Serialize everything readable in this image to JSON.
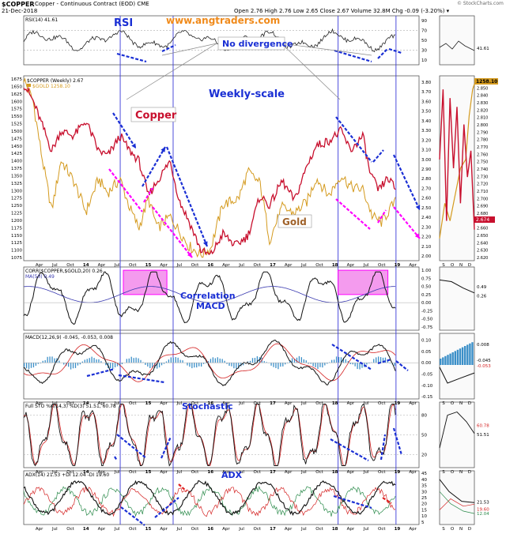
{
  "header": {
    "symbol": "$COPPER",
    "description": "Copper - Continuous Contract (EOD) CME",
    "date": "21-Dec-2018",
    "watermark": "© StockCharts.com",
    "ohlc": "Open 2.76  High 2.76  Low 2.65  Close 2.67  Volume 32.8M  Chg -0.09 (-3.20%) ▾"
  },
  "colors": {
    "copper": "#c8102e",
    "gold": "#d49a1e",
    "blue_annot": "#1a2fd4",
    "magenta_annot": "#ff00ff",
    "vline": "#3a3ad8",
    "panel_bg_right": "#fafafa"
  },
  "annotations": {
    "rsi": "RSI",
    "site": "www.angtraders.com",
    "no_div": "No divergence",
    "weekly": "Weekly-scale",
    "copper": "Copper",
    "gold": "Gold",
    "correlation": "Correlation",
    "macd": "MACD",
    "stochastic": "Stochastic",
    "adx": "ADX"
  },
  "panels": {
    "rsi": {
      "legend": "RSI(14) 41.61",
      "right_value": "41.61",
      "ticks": [
        "90",
        "70",
        "50",
        "30",
        "10"
      ]
    },
    "price": {
      "legend_copper": "$COPPER (Weekly) 2.67",
      "legend_gold": "$GOLD 1258.10",
      "right_gold": "1258.10",
      "right_copper": "2.674",
      "left_ticks": [
        "1675",
        "1650",
        "1625",
        "1600",
        "1575",
        "1550",
        "1525",
        "1500",
        "1475",
        "1450",
        "1425",
        "1400",
        "1375",
        "1350",
        "1325",
        "1300",
        "1275",
        "1250",
        "1225",
        "1200",
        "1175",
        "1150",
        "1125",
        "1100",
        "1075"
      ],
      "right_ticks": [
        "3.80",
        "3.70",
        "3.60",
        "3.50",
        "3.40",
        "3.30",
        "3.20",
        "3.10",
        "3.00",
        "2.90",
        "2.80",
        "2.70",
        "2.60",
        "2.50",
        "2.40",
        "2.30",
        "2.20",
        "2.10",
        "2.00"
      ],
      "inset_ticks": [
        "2.860",
        "2.850",
        "2.840",
        "2.830",
        "2.820",
        "2.810",
        "2.800",
        "2.790",
        "2.780",
        "2.770",
        "2.760",
        "2.750",
        "2.740",
        "2.730",
        "2.720",
        "2.710",
        "2.700",
        "2.690",
        "2.680",
        "2.670",
        "2.660",
        "2.650",
        "2.640",
        "2.630",
        "2.620"
      ]
    },
    "corr": {
      "legend": "CORR($COPPER,$GOLD,20) 0.26",
      "legend2": "MA(50) 0.49",
      "right_1": "0.49",
      "right_2": "0.26",
      "ticks": [
        "1.00",
        "0.75",
        "0.50",
        "0.25",
        "0.00",
        "-0.25",
        "-0.50",
        "-0.75"
      ]
    },
    "macd": {
      "legend": "MACD(12,26,9) -0.045, -0.053, 0.008",
      "r1": "0.008",
      "r2": "-0.045",
      "r3": "-0.053",
      "ticks": [
        "0.10",
        "0.05",
        "0.00",
        "-0.05",
        "-0.10",
        "-0.15"
      ]
    },
    "sto": {
      "legend": "Full STO %K(14,3) %D(3) 51.51, 60.78",
      "r1": "60.78",
      "r2": "51.51",
      "ticks": [
        "80",
        "50",
        "20"
      ]
    },
    "adx": {
      "legend": "ADX(14) 21.53 +DI 12.04 -DI 19.60",
      "r1": "21.53",
      "r2": "19.60",
      "r3": "12.04",
      "ticks": [
        "45",
        "40",
        "35",
        "30",
        "25",
        "20",
        "15",
        "10",
        "5"
      ],
      "inset_ticks": [
        "30.0",
        "27.5",
        "25.0",
        "22.5",
        "20.0",
        "17.5",
        "15.0",
        "12.5"
      ]
    }
  },
  "x_axis": {
    "labels": [
      "Apr",
      "Jul",
      "Oct",
      "14",
      "Apr",
      "Jul",
      "Oct",
      "15",
      "Apr",
      "Jul",
      "Oct",
      "16",
      "Apr",
      "Jul",
      "Oct",
      "17",
      "Apr",
      "Jul",
      "Oct",
      "18",
      "Apr",
      "Jul",
      "Oct",
      "19",
      "Apr"
    ],
    "inset_labels": [
      "S",
      "O",
      "N",
      "D"
    ]
  },
  "chart_data": {
    "type": "line",
    "title": "$COPPER Copper - Continuous Contract (EOD) CME",
    "x_range": [
      "2013-01",
      "2019-04"
    ],
    "series": [
      {
        "name": "$COPPER (Weekly)",
        "unit": "USD/lb",
        "ylim": [
          1.95,
          3.8
        ],
        "points": [
          [
            2013.0,
            3.72
          ],
          [
            2013.15,
            3.55
          ],
          [
            2013.3,
            3.3
          ],
          [
            2013.45,
            3.05
          ],
          [
            2013.6,
            3.25
          ],
          [
            2013.8,
            3.2
          ],
          [
            2014.0,
            3.35
          ],
          [
            2014.2,
            3.05
          ],
          [
            2014.35,
            3.0
          ],
          [
            2014.55,
            3.2
          ],
          [
            2014.7,
            3.05
          ],
          [
            2014.85,
            2.95
          ],
          [
            2015.0,
            2.6
          ],
          [
            2015.15,
            2.75
          ],
          [
            2015.35,
            2.95
          ],
          [
            2015.5,
            2.55
          ],
          [
            2015.65,
            2.35
          ],
          [
            2015.85,
            2.05
          ],
          [
            2016.0,
            2.0
          ],
          [
            2016.2,
            2.22
          ],
          [
            2016.4,
            2.1
          ],
          [
            2016.6,
            2.2
          ],
          [
            2016.8,
            2.6
          ],
          [
            2016.95,
            2.5
          ],
          [
            2017.15,
            2.75
          ],
          [
            2017.35,
            2.55
          ],
          [
            2017.55,
            2.9
          ],
          [
            2017.7,
            3.1
          ],
          [
            2017.9,
            3.15
          ],
          [
            2018.1,
            3.25
          ],
          [
            2018.25,
            3.05
          ],
          [
            2018.45,
            3.2
          ],
          [
            2018.55,
            2.85
          ],
          [
            2018.7,
            2.65
          ],
          [
            2018.85,
            2.78
          ],
          [
            2018.97,
            2.67
          ]
        ]
      },
      {
        "name": "$GOLD",
        "unit": "USD/oz",
        "ylim": [
          1060,
          1685
        ],
        "points": [
          [
            2013.0,
            1675
          ],
          [
            2013.15,
            1600
          ],
          [
            2013.3,
            1400
          ],
          [
            2013.45,
            1230
          ],
          [
            2013.6,
            1400
          ],
          [
            2013.8,
            1330
          ],
          [
            2014.0,
            1225
          ],
          [
            2014.2,
            1335
          ],
          [
            2014.35,
            1290
          ],
          [
            2014.55,
            1335
          ],
          [
            2014.7,
            1240
          ],
          [
            2014.85,
            1170
          ],
          [
            2015.0,
            1270
          ],
          [
            2015.15,
            1170
          ],
          [
            2015.35,
            1210
          ],
          [
            2015.5,
            1160
          ],
          [
            2015.65,
            1110
          ],
          [
            2015.85,
            1080
          ],
          [
            2016.0,
            1100
          ],
          [
            2016.2,
            1250
          ],
          [
            2016.45,
            1270
          ],
          [
            2016.6,
            1360
          ],
          [
            2016.8,
            1320
          ],
          [
            2016.95,
            1130
          ],
          [
            2017.15,
            1240
          ],
          [
            2017.35,
            1220
          ],
          [
            2017.55,
            1260
          ],
          [
            2017.7,
            1340
          ],
          [
            2017.9,
            1280
          ],
          [
            2018.1,
            1350
          ],
          [
            2018.25,
            1310
          ],
          [
            2018.45,
            1300
          ],
          [
            2018.6,
            1210
          ],
          [
            2018.75,
            1190
          ],
          [
            2018.9,
            1240
          ],
          [
            2018.97,
            1258.1
          ]
        ]
      }
    ],
    "indicators": {
      "RSI(14)": 41.61,
      "CORR($COPPER,$GOLD,20)": 0.26,
      "CORR MA(50)": 0.49,
      "MACD(12,26,9)": [
        -0.045,
        -0.053,
        0.008
      ],
      "Full STO %K(14,3) %D(3)": [
        51.51,
        60.78
      ],
      "ADX(14)": 21.53,
      "+DI": 12.04,
      "-DI": 19.6
    }
  }
}
